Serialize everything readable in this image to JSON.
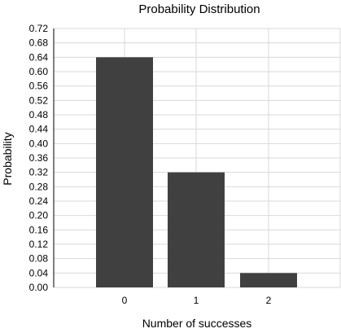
{
  "chart_data": {
    "type": "bar",
    "title": "Probability Distribution",
    "xlabel": "Number of successes",
    "ylabel": "Probability",
    "categories": [
      "0",
      "1",
      "2"
    ],
    "values": [
      0.64,
      0.32,
      0.04
    ],
    "ylim": [
      0,
      0.72
    ],
    "yticks": [
      "0.00",
      "0.04",
      "0.08",
      "0.12",
      "0.16",
      "0.20",
      "0.24",
      "0.28",
      "0.32",
      "0.36",
      "0.40",
      "0.44",
      "0.48",
      "0.52",
      "0.56",
      "0.60",
      "0.64",
      "0.68",
      "0.72"
    ],
    "grid": true,
    "legend": "none",
    "bar_color": "#404040",
    "grid_color": "#d9d9d9"
  }
}
